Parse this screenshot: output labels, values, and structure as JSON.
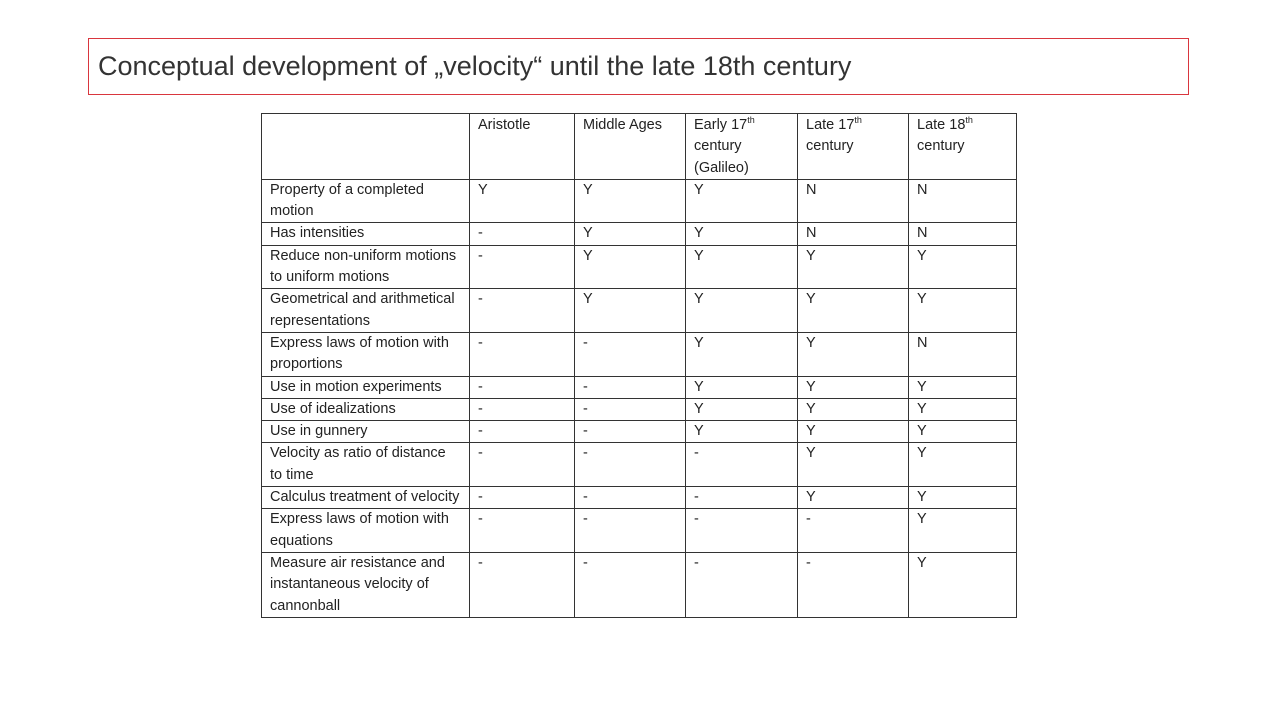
{
  "title": "Conceptual development of „velocity“ until the late 18th century",
  "table": {
    "header": [
      "Aristotle",
      "Middle Ages",
      {
        "text": "Early 17",
        "sup": "th",
        "rest": " century (Galileo)"
      },
      {
        "text": "Late 17",
        "sup": "th",
        "rest": " century"
      },
      {
        "text": "Late 18",
        "sup": "th",
        "rest": " century"
      }
    ],
    "rows": [
      [
        "Property of a completed motion",
        "Y",
        "Y",
        "Y",
        "N",
        "N"
      ],
      [
        "Has intensities",
        "-",
        "Y",
        "Y",
        "N",
        "N"
      ],
      [
        "Reduce non-uniform motions to uniform motions",
        "-",
        "Y",
        "Y",
        "Y",
        "Y"
      ],
      [
        "Geometrical and arithmetical representations",
        "-",
        "Y",
        "Y",
        "Y",
        "Y"
      ],
      [
        "Express laws of motion with proportions",
        "-",
        "-",
        "Y",
        "Y",
        "N"
      ],
      [
        "Use in motion experiments",
        "-",
        "-",
        "Y",
        "Y",
        "Y"
      ],
      [
        "Use of idealizations",
        "-",
        "-",
        "Y",
        "Y",
        "Y"
      ],
      [
        "Use in gunnery",
        "-",
        "-",
        "Y",
        "Y",
        "Y"
      ],
      [
        "Velocity as ratio of distance to time",
        "-",
        "-",
        "-",
        "Y",
        "Y"
      ],
      [
        "Calculus treatment of velocity",
        "-",
        "-",
        "-",
        "Y",
        "Y"
      ],
      [
        "Express laws of motion with equations",
        "-",
        "-",
        "-",
        "-",
        "Y"
      ],
      [
        "Measure air resistance and instantaneous velocity of cannonball",
        "-",
        "-",
        "-",
        "-",
        "Y"
      ]
    ]
  }
}
